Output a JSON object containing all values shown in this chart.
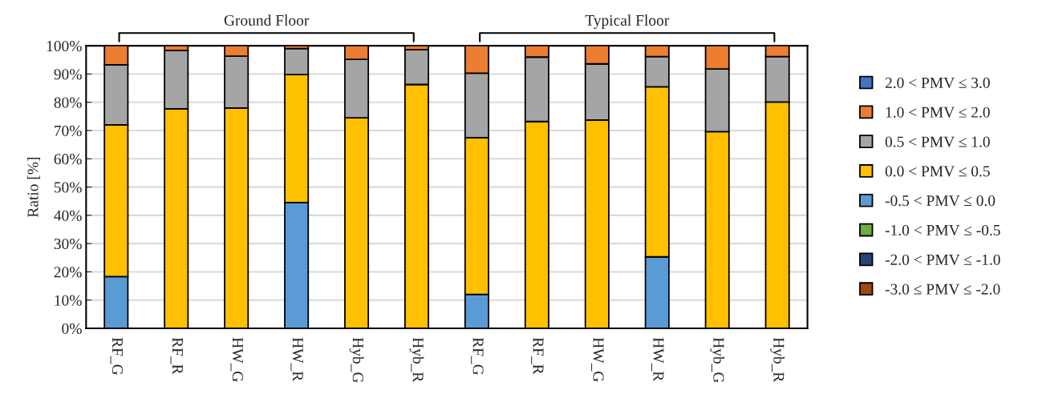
{
  "chart_data": {
    "type": "bar",
    "stacked": true,
    "ylabel": "Ratio [%]",
    "annotations": [
      "Ground Floor",
      "Typical Floor"
    ],
    "categories": [
      "RF_G",
      "RF_R",
      "HW_G",
      "HW_R",
      "Hyb_G",
      "Hyb_R",
      "RF_G",
      "RF_R",
      "HW_G",
      "HW_R",
      "Hyb_G",
      "Hyb_R"
    ],
    "ylim": [
      0,
      100
    ],
    "yticks": [
      {
        "value": 0,
        "label": "0%"
      },
      {
        "value": 10,
        "label": "10%"
      },
      {
        "value": 20,
        "label": "20%"
      },
      {
        "value": 30,
        "label": "30%"
      },
      {
        "value": 40,
        "label": "40%"
      },
      {
        "value": 50,
        "label": "50%"
      },
      {
        "value": 60,
        "label": "60%"
      },
      {
        "value": 70,
        "label": "70%"
      },
      {
        "value": 80,
        "label": "80%"
      },
      {
        "value": 90,
        "label": "90%"
      },
      {
        "value": 100,
        "label": "100%"
      }
    ],
    "grid": "y",
    "legend": "right",
    "series": [
      {
        "name": "-3.0 ≤ PMV ≤ -2.0",
        "color": "#9e480e",
        "values": [
          null,
          null,
          null,
          null,
          null,
          null,
          null,
          null,
          null,
          null,
          null,
          null
        ]
      },
      {
        "name": "-2.0 < PMV ≤ -1.0",
        "color": "#264478",
        "values": [
          null,
          null,
          null,
          null,
          null,
          null,
          null,
          null,
          null,
          null,
          null,
          null
        ]
      },
      {
        "name": "-1.0 < PMV ≤ -0.5",
        "color": "#70ad47",
        "values": [
          null,
          null,
          null,
          null,
          null,
          null,
          null,
          null,
          null,
          null,
          null,
          null
        ]
      },
      {
        "name": "-0.5 < PMV ≤ 0.0",
        "color": "#5b9bd5",
        "values": [
          18.3,
          null,
          null,
          44.5,
          null,
          null,
          12,
          null,
          null,
          25.3,
          null,
          null
        ]
      },
      {
        "name": "0.0 < PMV ≤ 0.5",
        "color": "#ffc000",
        "values": [
          53.7,
          77.7,
          78,
          45.3,
          74.5,
          86.3,
          55.5,
          73.2,
          73.7,
          60.2,
          69.6,
          80.1
        ]
      },
      {
        "name": "0.5 < PMV ≤ 1.0",
        "color": "#a5a5a5",
        "values": [
          21.3,
          20.6,
          18.3,
          9.2,
          20.7,
          12.3,
          22.8,
          22.8,
          19.9,
          10.7,
          22.2,
          16.1
        ]
      },
      {
        "name": "1.0 < PMV ≤ 2.0",
        "color": "#ed7d31",
        "values": [
          6.7,
          1.7,
          3.7,
          1,
          4.8,
          1.4,
          9.7,
          4,
          6.4,
          3.8,
          8.2,
          3.8
        ]
      },
      {
        "name": "2.0 < PMV ≤ 3.0",
        "color": "#4472c4",
        "values": [
          null,
          null,
          null,
          null,
          null,
          null,
          null,
          null,
          null,
          null,
          null,
          null
        ]
      }
    ]
  }
}
